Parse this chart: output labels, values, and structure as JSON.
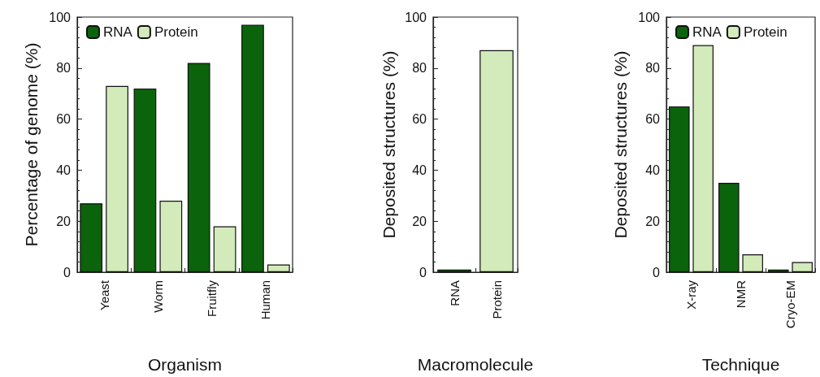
{
  "chart_data": [
    {
      "type": "bar",
      "xlabel": "Organism",
      "ylabel": "Percentage of genome (%)",
      "categories": [
        "Yeast",
        "Worm",
        "Fruitfly",
        "Human"
      ],
      "series": [
        {
          "name": "RNA",
          "color": "#0b630b",
          "values": [
            27,
            72,
            82,
            97
          ]
        },
        {
          "name": "Protein",
          "color": "#d3ebbb",
          "values": [
            73,
            28,
            18,
            3
          ]
        }
      ],
      "ylim": [
        0,
        100
      ],
      "yticks": [
        0,
        20,
        40,
        60,
        80,
        100
      ],
      "grid": false,
      "legend": "top left"
    },
    {
      "type": "bar",
      "xlabel": "Macromolecule",
      "ylabel": "Deposited structures (%)",
      "categories": [
        "RNA",
        "Protein"
      ],
      "values": [
        1,
        87
      ],
      "colors": [
        "#0b630b",
        "#d3ebbb"
      ],
      "ylim": [
        0,
        100
      ],
      "yticks": [
        0,
        20,
        40,
        60,
        80,
        100
      ],
      "grid": false
    },
    {
      "type": "bar",
      "xlabel": "Technique",
      "ylabel": "Deposited structures (%)",
      "categories": [
        "X-ray",
        "NMR",
        "Cryo-EM"
      ],
      "series": [
        {
          "name": "RNA",
          "color": "#0b630b",
          "values": [
            65,
            35,
            1
          ]
        },
        {
          "name": "Protein",
          "color": "#d3ebbb",
          "values": [
            89,
            7,
            4
          ]
        }
      ],
      "ylim": [
        0,
        100
      ],
      "yticks": [
        0,
        20,
        40,
        60,
        80,
        100
      ],
      "grid": false,
      "legend": "top left"
    }
  ]
}
